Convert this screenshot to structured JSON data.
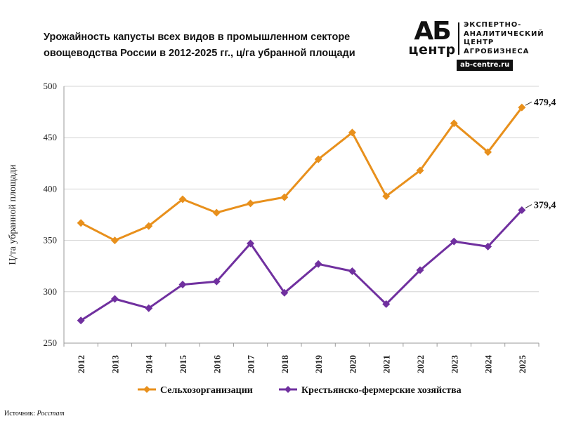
{
  "title": {
    "line1": "Урожайность капусты всех видов в промышленном секторе",
    "line2": "овощеводства России в 2012-2025 гг., ц/га убранной площади"
  },
  "logo": {
    "mark_big": "АБ",
    "mark_small": "центр",
    "text_lines": [
      "ЭКСПЕРТНО-",
      "АНАЛИТИЧЕСКИЙ",
      "ЦЕНТР",
      "АГРОБИЗНЕСА"
    ],
    "url": "ab-centre.ru"
  },
  "source": {
    "label": "Источник:",
    "name": "Росстат"
  },
  "chart_data": {
    "type": "line",
    "ylabel": "Ц/та убранной площади",
    "ylim": [
      250,
      500
    ],
    "yticks": [
      250,
      300,
      350,
      400,
      450,
      500
    ],
    "grid": "horizontal",
    "legend_position": "bottom",
    "categories": [
      "2012",
      "2013",
      "2014",
      "2015",
      "2016",
      "2017",
      "2018",
      "2019",
      "2020",
      "2021",
      "2022",
      "2023",
      "2024",
      "2025"
    ],
    "series": [
      {
        "name": "Сельхозорганизации",
        "color": "#E8901C",
        "values": [
          367,
          350,
          364,
          390,
          377,
          386,
          392,
          429,
          455,
          393,
          418,
          464,
          436,
          479.4
        ],
        "end_label": "479,4"
      },
      {
        "name": "Крестьянско-фермерские хозяйства",
        "color": "#70309F",
        "values": [
          272,
          293,
          284,
          307,
          310,
          347,
          299,
          327,
          320,
          288,
          321,
          349,
          344,
          379.4
        ],
        "end_label": "379,4"
      }
    ]
  }
}
